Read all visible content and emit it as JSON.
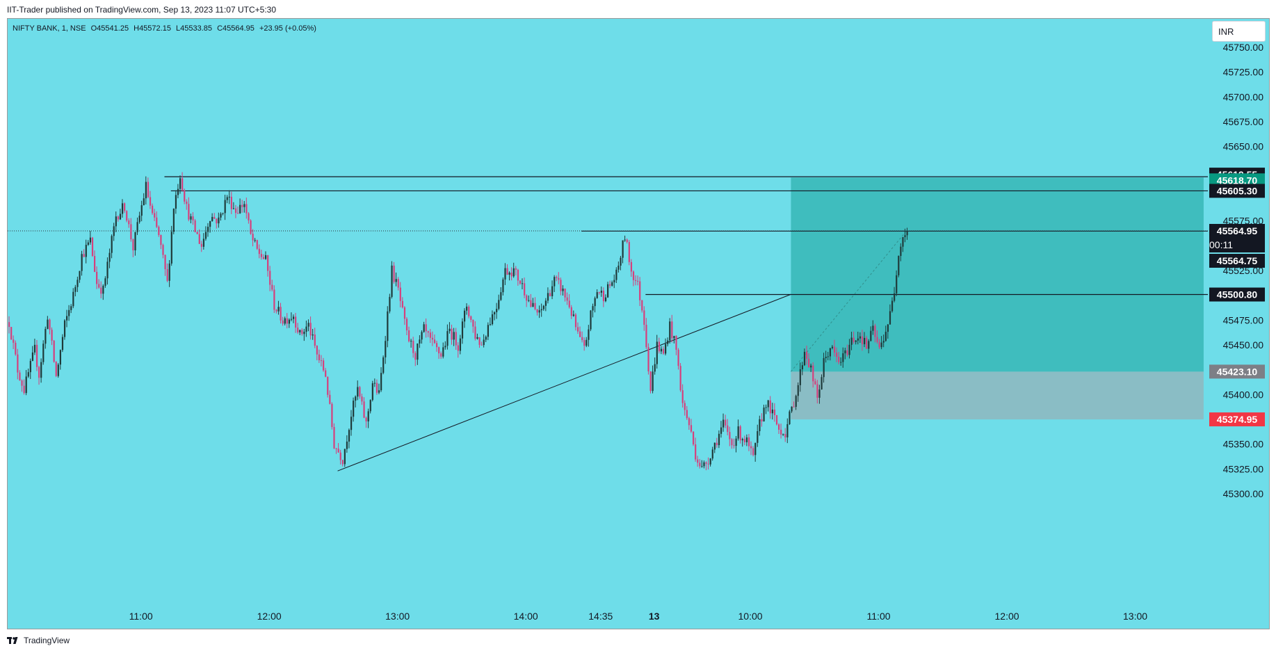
{
  "header": {
    "published": "IIT-Trader published on TradingView.com, Sep 13, 2023 11:07 UTC+5:30"
  },
  "legend": {
    "symbol": "NIFTY BANK, 1, NSE",
    "open": "O45541.25",
    "high": "H45572.15",
    "low": "L45533.85",
    "close": "C45564.95",
    "change": "+23.95 (+0.05%)"
  },
  "currency_button": "INR",
  "footer": {
    "brand": "TradingView"
  },
  "colors": {
    "background": "#6edde9",
    "up_candle": "#1e3a3a",
    "down_candle": "#d63f7c",
    "target_zone": "#1aa39a",
    "stop_zone": "#a3a3a8",
    "stop_label": "#f23645",
    "target_label": "#089981"
  },
  "chart_data": {
    "type": "candlestick",
    "symbol": "NIFTY BANK",
    "interval": "1",
    "exchange": "NSE",
    "ylim": [
      45291,
      45772
    ],
    "yticks": [
      45300,
      45325,
      45350,
      45375,
      45400,
      45425,
      45450,
      45475,
      45500,
      45525,
      45550,
      45575,
      45600,
      45625,
      45650,
      45675,
      45700,
      45725,
      45750
    ],
    "ytick_labels": [
      "45300.00",
      "45325.00",
      "45350.00",
      "",
      "45400.00",
      "",
      "45450.00",
      "45475.00",
      "",
      "45525.00",
      "",
      "45575.00",
      "",
      "",
      "45650.00",
      "45675.00",
      "45700.00",
      "45725.00",
      "45750.00"
    ],
    "xticks": [
      {
        "label": "11:00",
        "bar": 62,
        "bold": false
      },
      {
        "label": "12:00",
        "bar": 122,
        "bold": false
      },
      {
        "label": "13:00",
        "bar": 182,
        "bold": false
      },
      {
        "label": "14:00",
        "bar": 242,
        "bold": false
      },
      {
        "label": "14:35",
        "bar": 277,
        "bold": false
      },
      {
        "label": "13",
        "bar": 302,
        "bold": true
      },
      {
        "label": "10:00",
        "bar": 347,
        "bold": false
      },
      {
        "label": "11:00",
        "bar": 407,
        "bold": false
      },
      {
        "label": "12:00",
        "bar": 467,
        "bold": false
      },
      {
        "label": "13:00",
        "bar": 527,
        "bold": false
      }
    ],
    "last_price": 45564.95,
    "countdown": "00:11",
    "price_labels": [
      {
        "value": 45619.55,
        "text": "45619.55",
        "style": "dark"
      },
      {
        "value": 45618.7,
        "text": "45618.70",
        "style": "target"
      },
      {
        "value": 45605.3,
        "text": "45605.30",
        "style": "dark"
      },
      {
        "value": 45564.75,
        "text": "45564.75",
        "style": "dark"
      },
      {
        "value": 45500.8,
        "text": "45500.80",
        "style": "dark"
      },
      {
        "value": 45423.1,
        "text": "45423.10",
        "style": "entry"
      },
      {
        "value": 45374.95,
        "text": "45374.95",
        "style": "stop"
      }
    ],
    "horizontal_lines": [
      {
        "value": 45619.55,
        "from_bar": 73
      },
      {
        "value": 45605.3,
        "from_bar": 76
      },
      {
        "value": 45564.75,
        "from_bar": 268
      },
      {
        "value": 45500.8,
        "from_bar": 298
      }
    ],
    "trendline": {
      "bar1": 154,
      "price1": 45323,
      "bar2": 366,
      "price2": 45501
    },
    "position": {
      "entry": 45423.1,
      "target": 45618.7,
      "stop": 45374.95,
      "from_bar": 366,
      "to_bar": 559
    },
    "path": [
      [
        0,
        45473
      ],
      [
        4,
        45425
      ],
      [
        7,
        45405
      ],
      [
        12,
        45445
      ],
      [
        14,
        45420
      ],
      [
        18,
        45480
      ],
      [
        22,
        45418
      ],
      [
        26,
        45470
      ],
      [
        30,
        45500
      ],
      [
        34,
        45540
      ],
      [
        38,
        45555
      ],
      [
        41,
        45512
      ],
      [
        44,
        45505
      ],
      [
        46,
        45530
      ],
      [
        50,
        45580
      ],
      [
        54,
        45590
      ],
      [
        58,
        45548
      ],
      [
        61,
        45580
      ],
      [
        64,
        45610
      ],
      [
        67,
        45580
      ],
      [
        70,
        45560
      ],
      [
        74,
        45512
      ],
      [
        77,
        45590
      ],
      [
        80,
        45622
      ],
      [
        83,
        45588
      ],
      [
        86,
        45570
      ],
      [
        90,
        45550
      ],
      [
        94,
        45580
      ],
      [
        98,
        45575
      ],
      [
        102,
        45600
      ],
      [
        106,
        45585
      ],
      [
        110,
        45593
      ],
      [
        113,
        45560
      ],
      [
        116,
        45545
      ],
      [
        120,
        45535
      ],
      [
        124,
        45490
      ],
      [
        128,
        45475
      ],
      [
        133,
        45480
      ],
      [
        136,
        45460
      ],
      [
        140,
        45470
      ],
      [
        144,
        45440
      ],
      [
        148,
        45420
      ],
      [
        152,
        45350
      ],
      [
        156,
        45335
      ],
      [
        160,
        45380
      ],
      [
        163,
        45405
      ],
      [
        167,
        45370
      ],
      [
        170,
        45412
      ],
      [
        173,
        45400
      ],
      [
        176,
        45460
      ],
      [
        179,
        45525
      ],
      [
        182,
        45505
      ],
      [
        186,
        45460
      ],
      [
        190,
        45440
      ],
      [
        194,
        45465
      ],
      [
        198,
        45450
      ],
      [
        202,
        45440
      ],
      [
        206,
        45465
      ],
      [
        210,
        45450
      ],
      [
        214,
        45490
      ],
      [
        218,
        45460
      ],
      [
        221,
        45450
      ],
      [
        224,
        45470
      ],
      [
        228,
        45490
      ],
      [
        232,
        45525
      ],
      [
        236,
        45525
      ],
      [
        240,
        45510
      ],
      [
        244,
        45490
      ],
      [
        248,
        45480
      ],
      [
        252,
        45500
      ],
      [
        255,
        45515
      ],
      [
        258,
        45508
      ],
      [
        262,
        45490
      ],
      [
        266,
        45460
      ],
      [
        269,
        45445
      ],
      [
        272,
        45480
      ],
      [
        275,
        45505
      ],
      [
        278,
        45500
      ],
      [
        281,
        45510
      ],
      [
        284,
        45520
      ],
      [
        288,
        45560
      ],
      [
        291,
        45525
      ],
      [
        294,
        45510
      ],
      [
        297,
        45475
      ],
      [
        300,
        45405
      ],
      [
        303,
        45450
      ],
      [
        306,
        45440
      ],
      [
        309,
        45470
      ],
      [
        312,
        45445
      ],
      [
        315,
        45390
      ],
      [
        318,
        45370
      ],
      [
        321,
        45340
      ],
      [
        324,
        45325
      ],
      [
        327,
        45335
      ],
      [
        331,
        45355
      ],
      [
        334,
        45370
      ],
      [
        338,
        45350
      ],
      [
        341,
        45362
      ],
      [
        345,
        45352
      ],
      [
        348,
        45335
      ],
      [
        351,
        45370
      ],
      [
        354,
        45393
      ],
      [
        357,
        45380
      ],
      [
        360,
        45365
      ],
      [
        363,
        45362
      ],
      [
        366,
        45385
      ],
      [
        369,
        45410
      ],
      [
        372,
        45445
      ],
      [
        375,
        45425
      ],
      [
        378,
        45395
      ],
      [
        381,
        45432
      ],
      [
        384,
        45448
      ],
      [
        388,
        45432
      ],
      [
        391,
        45440
      ],
      [
        394,
        45455
      ],
      [
        398,
        45460
      ],
      [
        401,
        45448
      ],
      [
        404,
        45465
      ],
      [
        407,
        45445
      ],
      [
        410,
        45465
      ],
      [
        412,
        45480
      ],
      [
        414,
        45505
      ],
      [
        416,
        45545
      ],
      [
        418,
        45560
      ],
      [
        420,
        45565
      ]
    ]
  }
}
